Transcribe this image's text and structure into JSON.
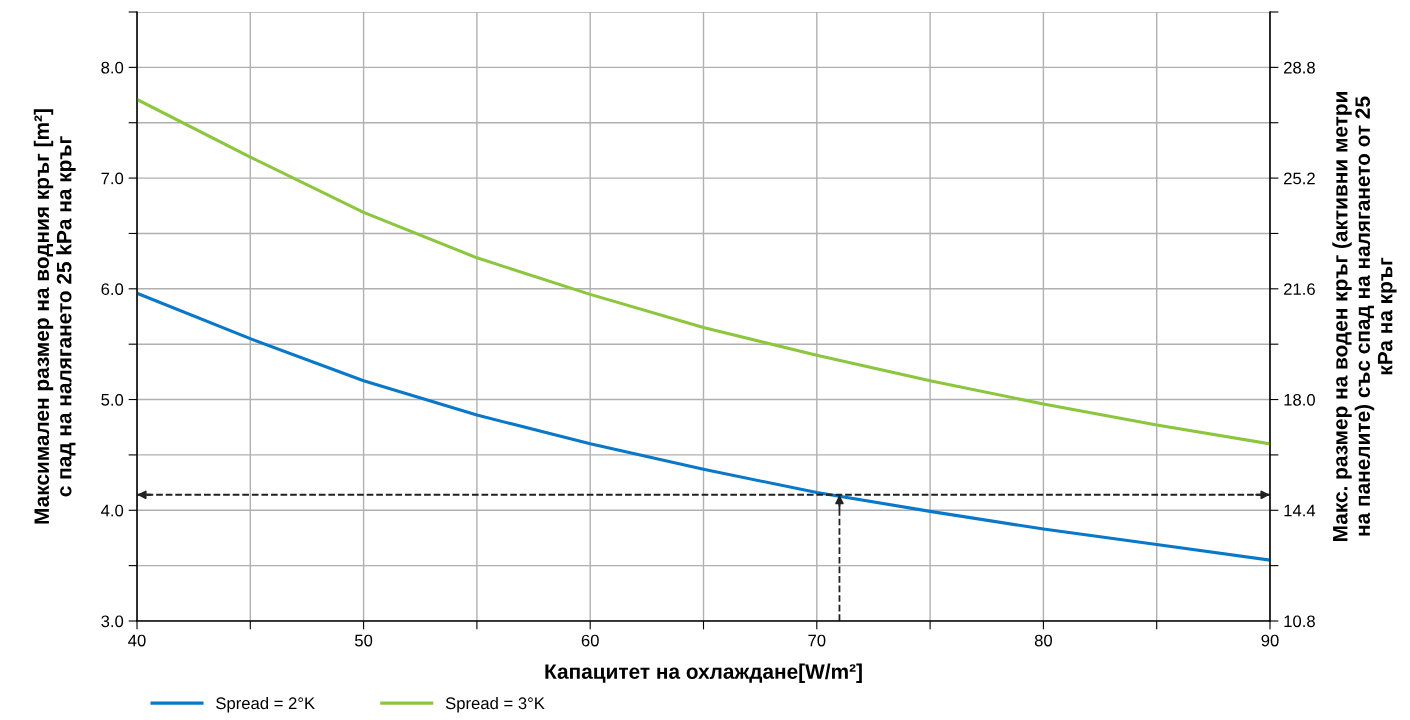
{
  "chart_data": {
    "type": "line",
    "xlabel": "Капацитет на охлаждане[W/m²]",
    "ylabel": "Максимален размер на водния кръг [m²]\nс пад на налягането 25 kPa на кръг",
    "y2label": "Макс. размер на воден кръг (активни метри\nна панелите) със спад на налягането от 25\nкРа на кръг",
    "x": [
      40,
      45,
      50,
      55,
      60,
      65,
      70,
      75,
      80,
      85,
      90
    ],
    "series": [
      {
        "name": "Spread = 2°K",
        "color": "#0a78c8",
        "values": [
          5.96,
          5.55,
          5.17,
          4.86,
          4.6,
          4.37,
          4.16,
          3.99,
          3.83,
          3.69,
          3.55
        ]
      },
      {
        "name": "Spread = 3°K",
        "color": "#8cc63f",
        "values": [
          7.71,
          7.19,
          6.69,
          6.28,
          5.95,
          5.65,
          5.4,
          5.17,
          4.96,
          4.77,
          4.6
        ]
      }
    ],
    "xlim": [
      40,
      90
    ],
    "xticks": [
      40,
      {
        "value": 45,
        "label": null
      },
      50,
      {
        "value": 55,
        "label": null
      },
      60,
      {
        "value": 65,
        "label": null
      },
      70,
      {
        "value": 75,
        "label": null
      },
      80,
      {
        "value": 85,
        "label": null
      },
      90
    ],
    "ylim": [
      3.0,
      8.5
    ],
    "yticks": [
      {
        "value": 3,
        "label": "3.0"
      },
      {
        "value": 3.5,
        "label": null
      },
      {
        "value": 4,
        "label": "4.0"
      },
      {
        "value": 4.5,
        "label": null
      },
      {
        "value": 5,
        "label": "5.0"
      },
      {
        "value": 5.5,
        "label": null
      },
      {
        "value": 6,
        "label": "6.0"
      },
      {
        "value": 6.5,
        "label": null
      },
      {
        "value": 7,
        "label": "7.0"
      },
      {
        "value": 7.5,
        "label": null
      },
      {
        "value": 8,
        "label": "8.0"
      },
      {
        "value": 8.5,
        "label": null
      }
    ],
    "y2lim": [
      10.8,
      30.6
    ],
    "y2ticks": [
      10.8,
      {
        "value": 12.6,
        "label": null
      },
      14.4,
      {
        "value": 16.2,
        "label": null
      },
      {
        "value": 18,
        "label": "18.0"
      },
      {
        "value": 19.8,
        "label": null
      },
      21.6,
      {
        "value": 23.4,
        "label": null
      },
      25.2,
      {
        "value": 27.0,
        "label": null
      },
      28.8,
      {
        "value": 30.6,
        "label": null
      }
    ],
    "ref_lines": [
      {
        "axis": "y",
        "value": 4.14,
        "color": "#222222",
        "line_style": "dashed"
      },
      {
        "axis": "x",
        "value": 71,
        "color": "#222222",
        "line_style": "dashed"
      }
    ],
    "grid": true,
    "legend": "bottom left",
    "line_style": "solid",
    "marker": "none"
  }
}
